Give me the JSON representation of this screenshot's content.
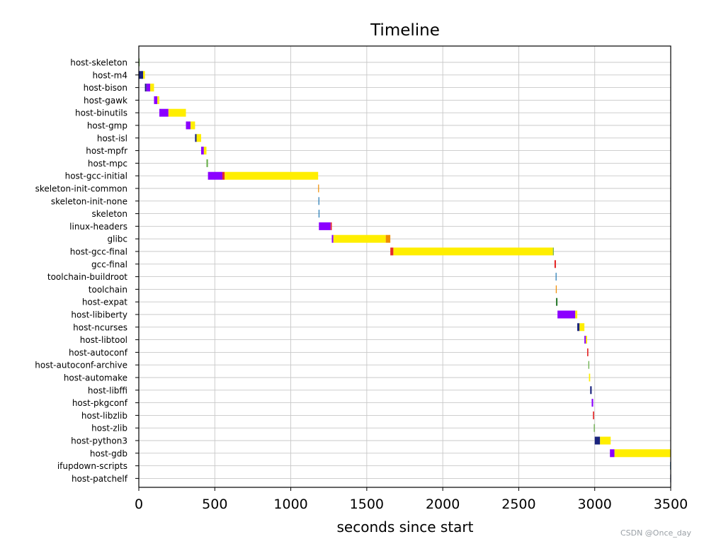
{
  "chart_data": {
    "type": "bar",
    "title": "Timeline",
    "xlabel": "seconds since start",
    "ylabel": "",
    "xlim": [
      0,
      3500
    ],
    "xticks": [
      0,
      500,
      1000,
      1500,
      2000,
      2500,
      3000,
      3500
    ],
    "grid": true,
    "phase_colors": {
      "extract": "#1a237e",
      "patch": "#8b00ff",
      "configure": "#e52b2b",
      "build": "#ffee00",
      "install-host": "#6ab04c",
      "install-staging": "#f08c00",
      "install-target": "#1f77b4",
      "install-images": "#2e7d32"
    },
    "categories": [
      "host-skeleton",
      "host-m4",
      "host-bison",
      "host-gawk",
      "host-binutils",
      "host-gmp",
      "host-isl",
      "host-mpfr",
      "host-mpc",
      "host-gcc-initial",
      "skeleton-init-common",
      "skeleton-init-none",
      "skeleton",
      "linux-headers",
      "glibc",
      "host-gcc-final",
      "gcc-final",
      "toolchain-buildroot",
      "toolchain",
      "host-expat",
      "host-libiberty",
      "host-ncurses",
      "host-libtool",
      "host-autoconf",
      "host-autoconf-archive",
      "host-automake",
      "host-libffi",
      "host-pkgconf",
      "host-libzlib",
      "host-zlib",
      "host-python3",
      "host-gdb",
      "ifupdown-scripts",
      "host-patchelf"
    ],
    "segments": [
      {
        "row": "host-skeleton",
        "phase": "install-host",
        "start": 0,
        "end": 1
      },
      {
        "row": "host-m4",
        "phase": "extract",
        "start": 0,
        "end": 28
      },
      {
        "row": "host-m4",
        "phase": "build",
        "start": 28,
        "end": 40
      },
      {
        "row": "host-bison",
        "phase": "extract",
        "start": 40,
        "end": 50
      },
      {
        "row": "host-bison",
        "phase": "patch",
        "start": 50,
        "end": 75
      },
      {
        "row": "host-bison",
        "phase": "build",
        "start": 75,
        "end": 100
      },
      {
        "row": "host-gawk",
        "phase": "patch",
        "start": 100,
        "end": 122
      },
      {
        "row": "host-gawk",
        "phase": "build",
        "start": 122,
        "end": 135
      },
      {
        "row": "host-binutils",
        "phase": "patch",
        "start": 135,
        "end": 195
      },
      {
        "row": "host-binutils",
        "phase": "build",
        "start": 195,
        "end": 310
      },
      {
        "row": "host-gmp",
        "phase": "patch",
        "start": 310,
        "end": 340
      },
      {
        "row": "host-gmp",
        "phase": "build",
        "start": 340,
        "end": 370
      },
      {
        "row": "host-isl",
        "phase": "extract",
        "start": 370,
        "end": 380
      },
      {
        "row": "host-isl",
        "phase": "build",
        "start": 380,
        "end": 410
      },
      {
        "row": "host-mpfr",
        "phase": "patch",
        "start": 410,
        "end": 428
      },
      {
        "row": "host-mpfr",
        "phase": "build",
        "start": 428,
        "end": 445
      },
      {
        "row": "host-mpc",
        "phase": "install-host",
        "start": 445,
        "end": 455
      },
      {
        "row": "host-gcc-initial",
        "phase": "patch",
        "start": 455,
        "end": 550
      },
      {
        "row": "host-gcc-initial",
        "phase": "configure",
        "start": 550,
        "end": 565
      },
      {
        "row": "host-gcc-initial",
        "phase": "build",
        "start": 565,
        "end": 1180
      },
      {
        "row": "skeleton-init-common",
        "phase": "install-staging",
        "start": 1180,
        "end": 1185
      },
      {
        "row": "skeleton-init-none",
        "phase": "install-target",
        "start": 1182,
        "end": 1186
      },
      {
        "row": "skeleton",
        "phase": "install-target",
        "start": 1183,
        "end": 1187
      },
      {
        "row": "linux-headers",
        "phase": "patch",
        "start": 1185,
        "end": 1262
      },
      {
        "row": "linux-headers",
        "phase": "configure",
        "start": 1262,
        "end": 1270
      },
      {
        "row": "glibc",
        "phase": "patch",
        "start": 1270,
        "end": 1280
      },
      {
        "row": "glibc",
        "phase": "build",
        "start": 1280,
        "end": 1625
      },
      {
        "row": "glibc",
        "phase": "install-staging",
        "start": 1625,
        "end": 1655
      },
      {
        "row": "host-gcc-final",
        "phase": "configure",
        "start": 1655,
        "end": 1675
      },
      {
        "row": "host-gcc-final",
        "phase": "build",
        "start": 1675,
        "end": 2725
      },
      {
        "row": "host-gcc-final",
        "phase": "install-host",
        "start": 2725,
        "end": 2730
      },
      {
        "row": "gcc-final",
        "phase": "configure",
        "start": 2735,
        "end": 2745
      },
      {
        "row": "toolchain-buildroot",
        "phase": "install-target",
        "start": 2743,
        "end": 2748
      },
      {
        "row": "toolchain",
        "phase": "install-staging",
        "start": 2744,
        "end": 2749
      },
      {
        "row": "host-expat",
        "phase": "install-images",
        "start": 2745,
        "end": 2755
      },
      {
        "row": "host-libiberty",
        "phase": "patch",
        "start": 2755,
        "end": 2872
      },
      {
        "row": "host-libiberty",
        "phase": "build",
        "start": 2872,
        "end": 2885
      },
      {
        "row": "host-ncurses",
        "phase": "extract",
        "start": 2885,
        "end": 2900
      },
      {
        "row": "host-ncurses",
        "phase": "build",
        "start": 2900,
        "end": 2932
      },
      {
        "row": "host-libtool",
        "phase": "patch",
        "start": 2932,
        "end": 2942
      },
      {
        "row": "host-libtool",
        "phase": "build",
        "start": 2942,
        "end": 2950
      },
      {
        "row": "host-autoconf",
        "phase": "configure",
        "start": 2950,
        "end": 2958
      },
      {
        "row": "host-autoconf-archive",
        "phase": "install-host",
        "start": 2958,
        "end": 2964
      },
      {
        "row": "host-automake",
        "phase": "build",
        "start": 2962,
        "end": 2970
      },
      {
        "row": "host-libffi",
        "phase": "extract",
        "start": 2970,
        "end": 2980
      },
      {
        "row": "host-pkgconf",
        "phase": "patch",
        "start": 2980,
        "end": 2990
      },
      {
        "row": "host-libzlib",
        "phase": "configure",
        "start": 2988,
        "end": 2996
      },
      {
        "row": "host-zlib",
        "phase": "install-host",
        "start": 2994,
        "end": 3000
      },
      {
        "row": "host-python3",
        "phase": "extract",
        "start": 3000,
        "end": 3035
      },
      {
        "row": "host-python3",
        "phase": "build",
        "start": 3035,
        "end": 3105
      },
      {
        "row": "host-gdb",
        "phase": "patch",
        "start": 3100,
        "end": 3130
      },
      {
        "row": "host-gdb",
        "phase": "build",
        "start": 3130,
        "end": 3500
      },
      {
        "row": "ifupdown-scripts",
        "phase": "install-target",
        "start": 3496,
        "end": 3500
      },
      {
        "row": "host-patchelf",
        "phase": "extract",
        "start": 3497,
        "end": 3500
      }
    ]
  },
  "watermark": "CSDN @Once_day"
}
